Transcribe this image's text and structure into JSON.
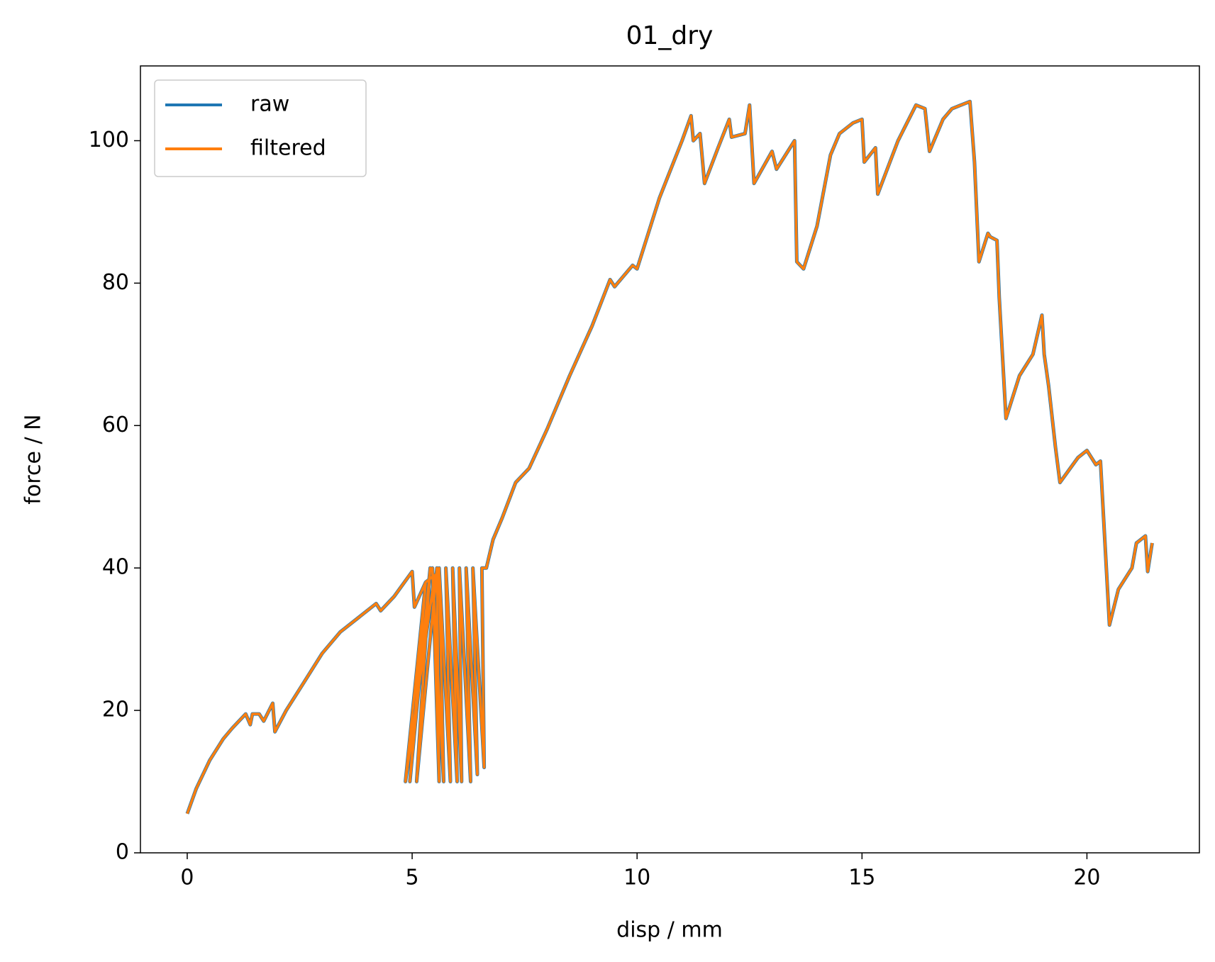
{
  "chart_data": {
    "type": "line",
    "title": "01_dry",
    "x_label": "disp / mm",
    "y_label": "force / N",
    "x": [
      0,
      0.2,
      0.5,
      0.8,
      1.0,
      1.3,
      1.4,
      1.45,
      1.6,
      1.7,
      1.9,
      1.95,
      2.2,
      2.6,
      3.0,
      3.4,
      3.8,
      4.2,
      4.3,
      4.6,
      5.0,
      5.05,
      5.3,
      5.5,
      4.85,
      5.3,
      4.95,
      5.4,
      5.1,
      5.55,
      5.6,
      5.45,
      5.7,
      5.6,
      5.85,
      5.75,
      6.0,
      5.9,
      6.1,
      6.05,
      6.3,
      6.2,
      6.45,
      6.35,
      6.6,
      6.55,
      6.65,
      6.8,
      7.0,
      7.3,
      7.6,
      8.0,
      8.5,
      9.0,
      9.4,
      9.5,
      9.9,
      10.0,
      10.5,
      11.0,
      11.2,
      11.25,
      11.4,
      11.5,
      11.8,
      12.05,
      12.1,
      12.4,
      12.5,
      12.6,
      13.0,
      13.1,
      13.5,
      13.55,
      13.7,
      14.0,
      14.3,
      14.5,
      14.8,
      15.0,
      15.05,
      15.3,
      15.35,
      15.8,
      16.2,
      16.4,
      16.5,
      16.8,
      17.0,
      17.2,
      17.4,
      17.5,
      17.6,
      17.8,
      17.85,
      18.0,
      18.05,
      18.2,
      18.5,
      18.8,
      19.0,
      19.05,
      19.15,
      19.3,
      19.4,
      19.8,
      20.0,
      20.2,
      20.3,
      20.5,
      20.7,
      21.0,
      21.1,
      21.3,
      21.35,
      21.45
    ],
    "series": [
      {
        "name": "raw",
        "color": "#1f77b4",
        "values": [
          5.5,
          9,
          13,
          16,
          17.5,
          19.5,
          18,
          19.5,
          19.5,
          18.5,
          21,
          17,
          20,
          24,
          28,
          31,
          33,
          35,
          34,
          36,
          39.5,
          34.5,
          38,
          39,
          10,
          38,
          10,
          40,
          10,
          40,
          10,
          40,
          10,
          40,
          10,
          40,
          10,
          40,
          10,
          40,
          10,
          40,
          11,
          40,
          12,
          40,
          40,
          44,
          47,
          52,
          54,
          59.5,
          67,
          74,
          80.5,
          79.5,
          82.5,
          82,
          92,
          100,
          103.5,
          100,
          101,
          94,
          99,
          103,
          100.5,
          101,
          105,
          94,
          98.5,
          96,
          100,
          83,
          82,
          88,
          98,
          101,
          102.5,
          103,
          97,
          99,
          92.5,
          100,
          105,
          104.5,
          98.5,
          103,
          104.5,
          105,
          105.5,
          97,
          83,
          87,
          86.5,
          86,
          78,
          61,
          67,
          70,
          75.5,
          70,
          65.5,
          57,
          52,
          55.5,
          56.5,
          54.5,
          55,
          32,
          37,
          40,
          43.5,
          44.5,
          39.5,
          43.5
        ]
      },
      {
        "name": "filtered",
        "color": "#ff7f0e",
        "values": [
          5.5,
          9,
          13,
          16,
          17.5,
          19.5,
          18,
          19.5,
          19.5,
          18.5,
          21,
          17,
          20,
          24,
          28,
          31,
          33,
          35,
          34,
          36,
          39.5,
          34.5,
          38,
          39,
          10,
          38,
          10,
          40,
          10,
          40,
          10,
          40,
          10,
          40,
          10,
          40,
          10,
          40,
          10,
          40,
          10,
          40,
          11,
          40,
          12,
          40,
          40,
          44,
          47,
          52,
          54,
          59.5,
          67,
          74,
          80.5,
          79.5,
          82.5,
          82,
          92,
          100,
          103.5,
          100,
          101,
          94,
          99,
          103,
          100.5,
          101,
          105,
          94,
          98.5,
          96,
          100,
          83,
          82,
          88,
          98,
          101,
          102.5,
          103,
          97,
          99,
          92.5,
          100,
          105,
          104.5,
          98.5,
          103,
          104.5,
          105,
          105.5,
          97,
          83,
          87,
          86.5,
          86,
          78,
          61,
          67,
          70,
          75.5,
          70,
          65.5,
          57,
          52,
          55.5,
          56.5,
          54.5,
          55,
          32,
          37,
          40,
          43.5,
          44.5,
          39.5,
          43.5
        ]
      }
    ],
    "xlim": [
      -1.04,
      22.5
    ],
    "ylim": [
      0,
      110.5
    ],
    "xticks": [
      0,
      5,
      10,
      15,
      20
    ],
    "yticks": [
      0,
      20,
      40,
      60,
      80,
      100
    ],
    "legend": "upper left",
    "grid": false
  }
}
